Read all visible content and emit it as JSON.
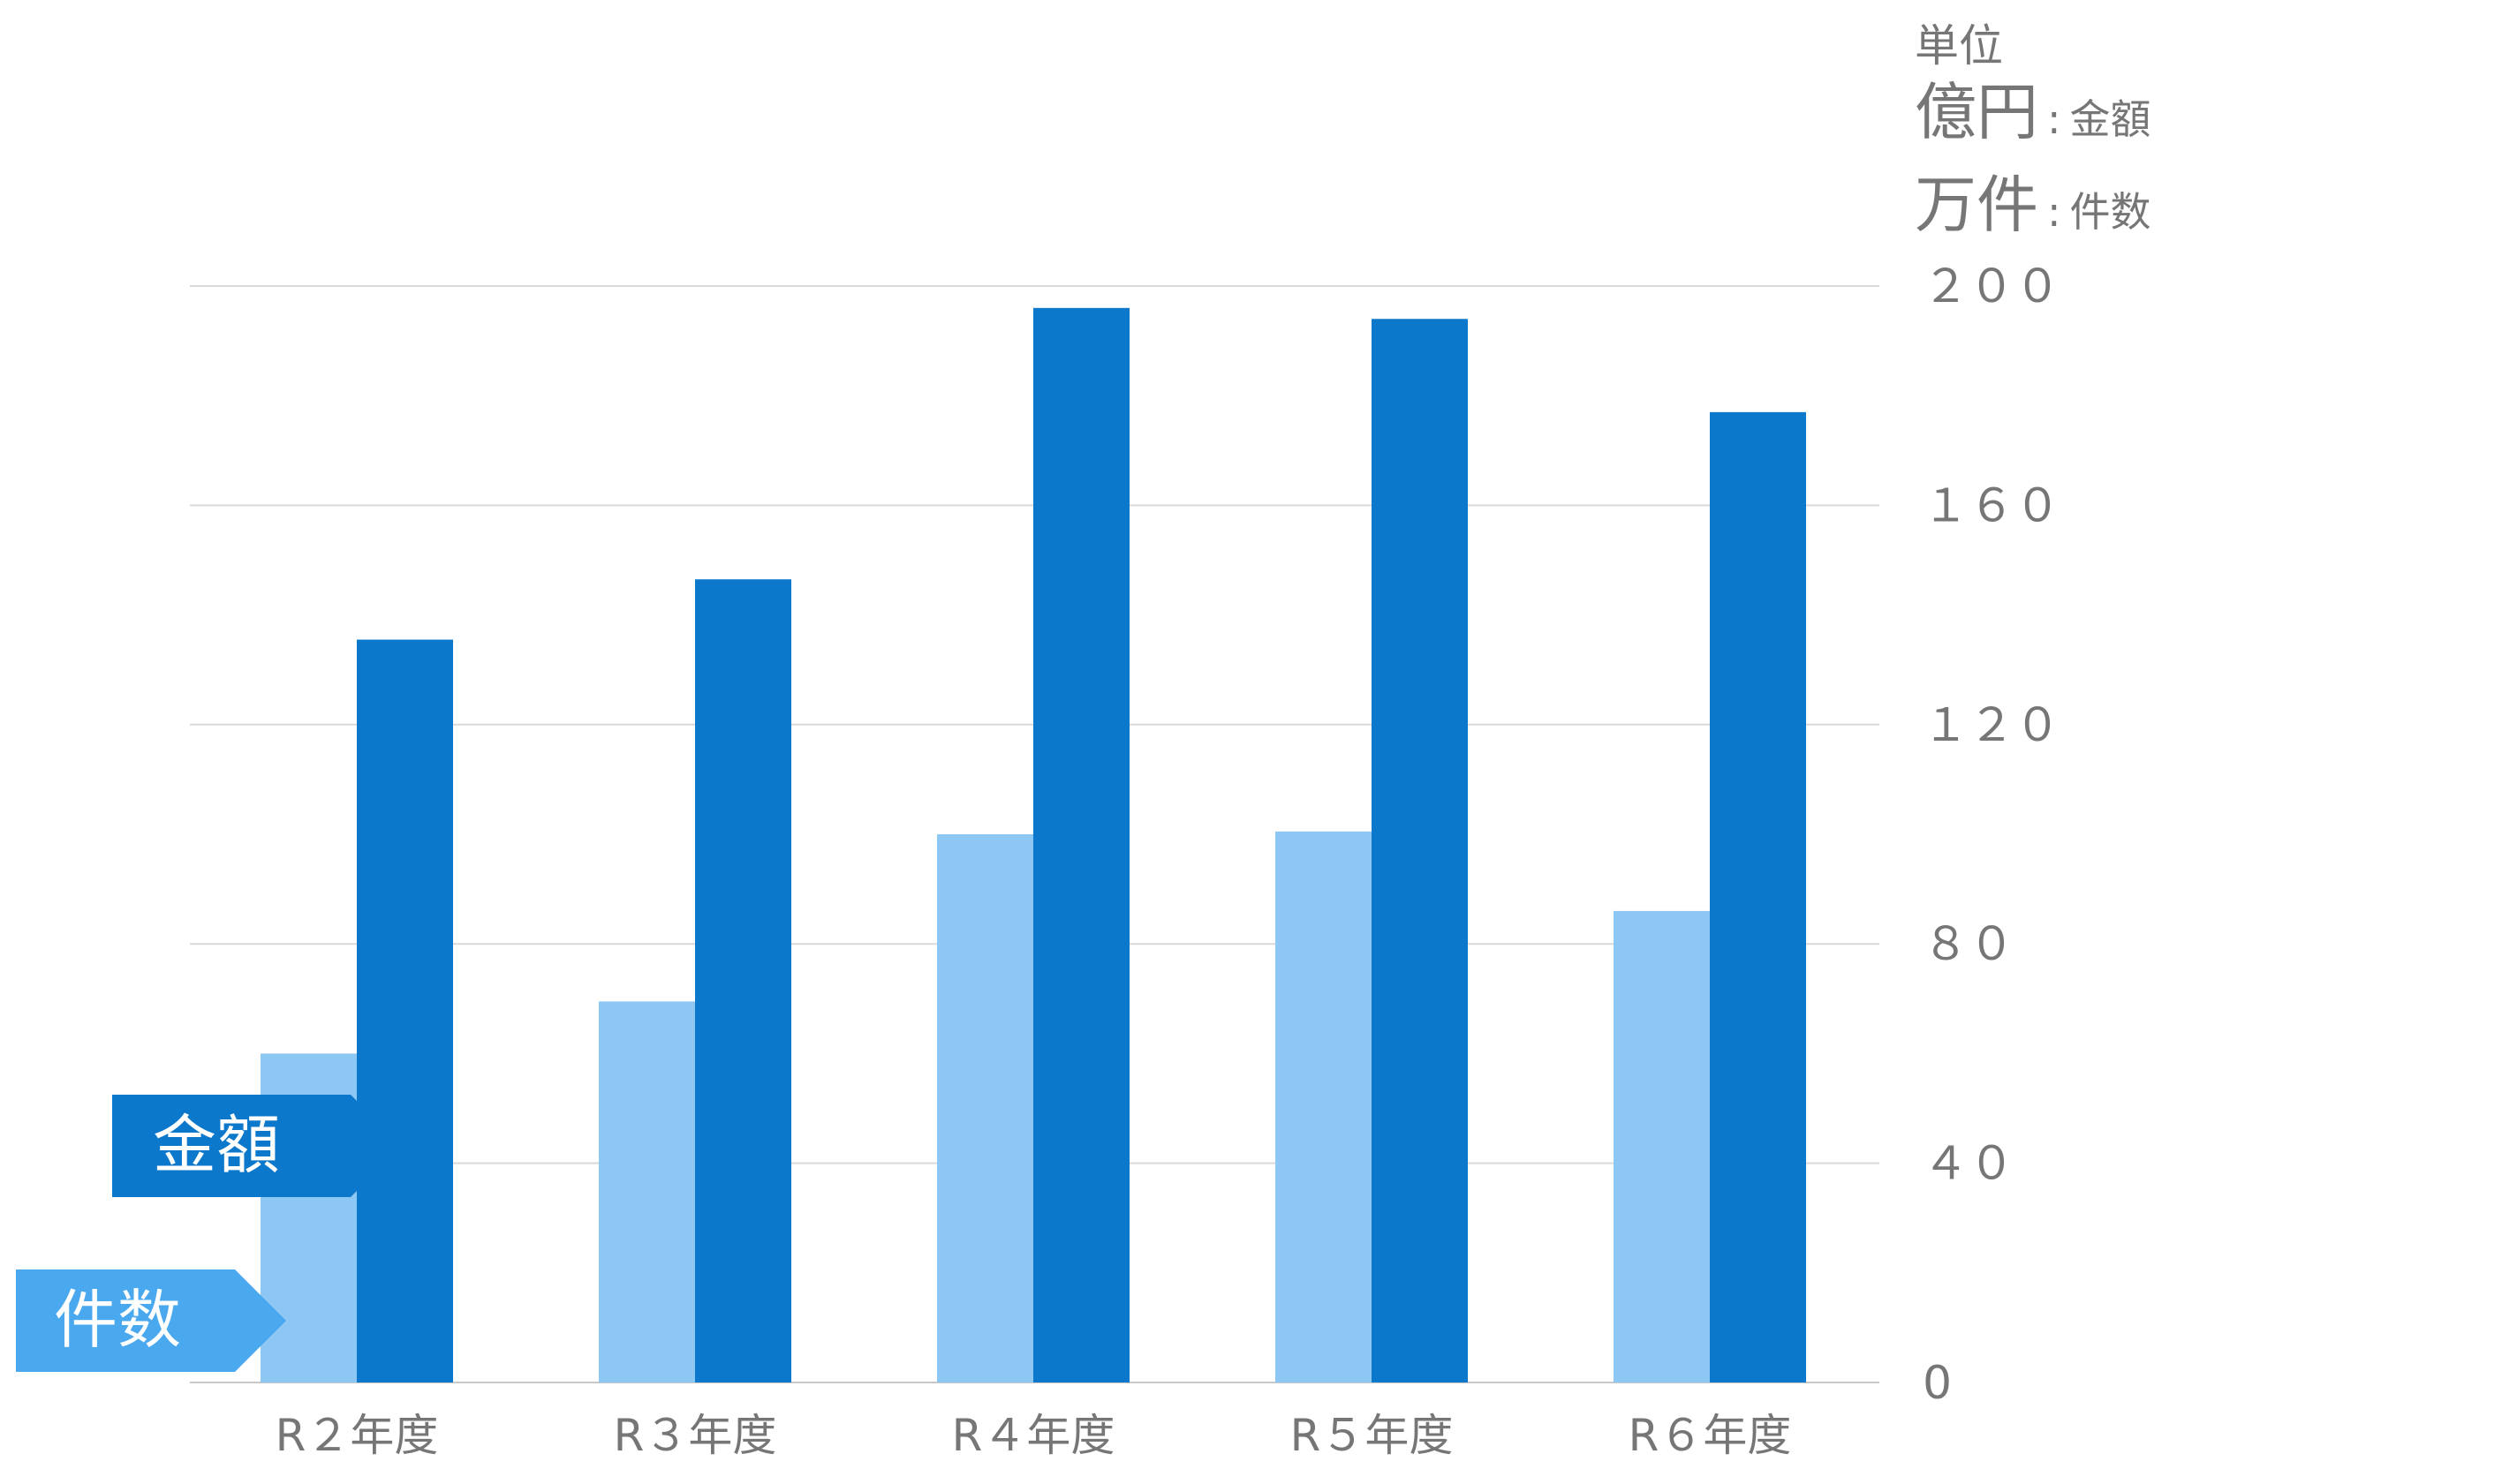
{
  "units": {
    "heading": "単位",
    "rows": [
      {
        "unit": "億円",
        "sep": ":",
        "label": "金額"
      },
      {
        "unit": "万件",
        "sep": ":",
        "label": "件数"
      }
    ]
  },
  "chart_data": {
    "type": "bar",
    "categories": [
      "R２年度",
      "R３年度",
      "R４年度",
      "R５年度",
      "R６年度"
    ],
    "series": [
      {
        "name": "件数",
        "color": "#8dc7f4",
        "values": [
          60,
          69.5,
          100,
          100.5,
          86
        ]
      },
      {
        "name": "金額",
        "color": "#0c78cb",
        "values": [
          135.5,
          146.5,
          196,
          194,
          177
        ]
      }
    ],
    "ylim": [
      0,
      200
    ],
    "yticks": [
      "0",
      "４０",
      "８０",
      "１２０",
      "１６０",
      "２００"
    ],
    "ytick_values": [
      0,
      40,
      80,
      120,
      160,
      200
    ],
    "grid": true,
    "axis_side": "right",
    "legend_placement": "left"
  }
}
